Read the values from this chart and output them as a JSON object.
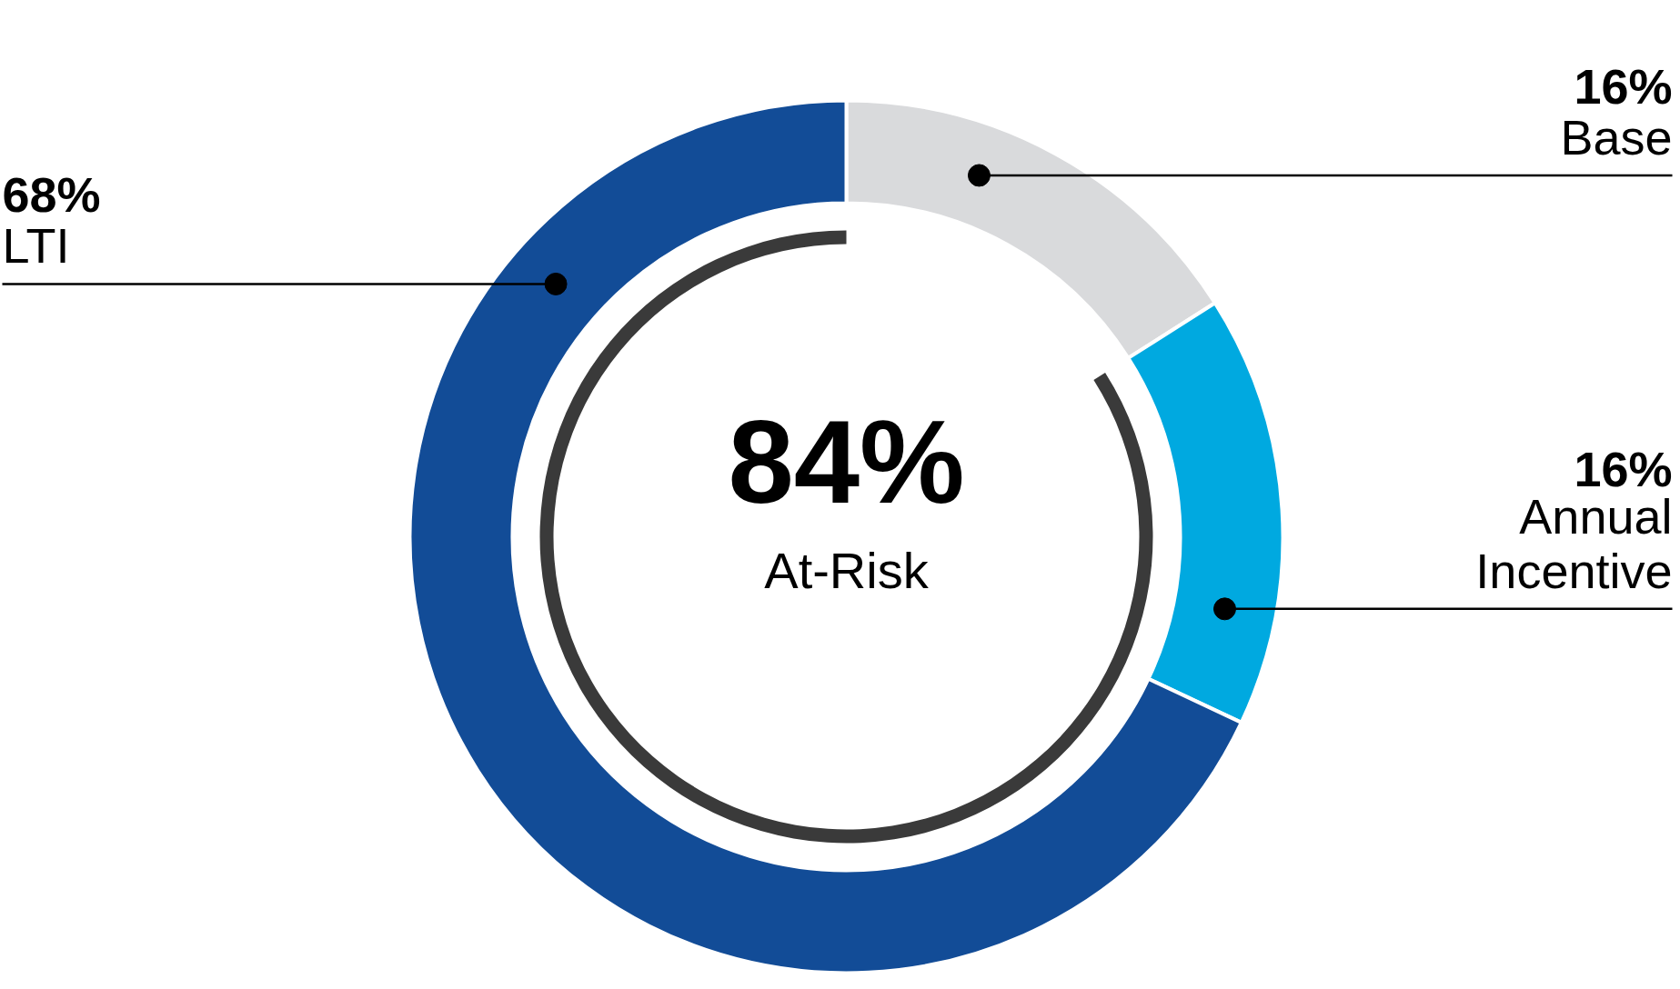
{
  "chart_data": {
    "type": "donut",
    "categories": [
      "Base",
      "Annual\nIncentive",
      "LTI"
    ],
    "values": [
      16,
      16,
      68
    ],
    "colors": [
      "#d9dadc",
      "#00a9e0",
      "#124c97"
    ],
    "value_labels": [
      "16%",
      "16%",
      "68%"
    ],
    "annotations": [
      "84%",
      "At-Risk"
    ]
  }
}
